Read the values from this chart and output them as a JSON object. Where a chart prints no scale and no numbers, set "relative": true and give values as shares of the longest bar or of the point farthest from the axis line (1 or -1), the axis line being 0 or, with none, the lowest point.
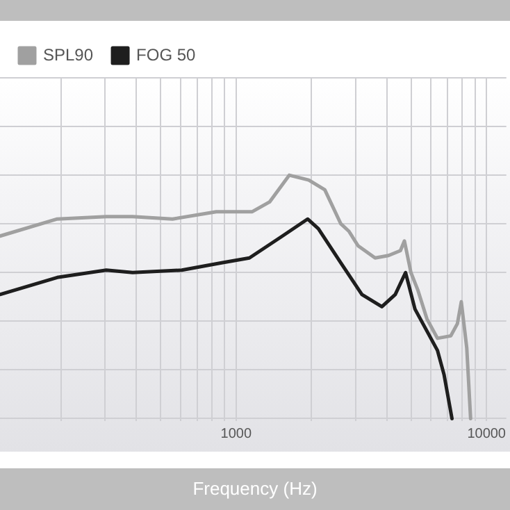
{
  "chart_data": {
    "type": "line",
    "xlabel": "Frequency (Hz)",
    "relative": true,
    "log": "x",
    "grid": true,
    "legend": "top left",
    "marker": "none",
    "line_style": "solid",
    "xlim": [
      114,
      12000
    ],
    "xticks": [
      {
        "value": 200,
        "label": null
      },
      {
        "value": 300,
        "label": null
      },
      {
        "value": 400,
        "label": null
      },
      {
        "value": 500,
        "label": null
      },
      {
        "value": 600,
        "label": null
      },
      {
        "value": 700,
        "label": null
      },
      {
        "value": 800,
        "label": null
      },
      {
        "value": 900,
        "label": null
      },
      1000,
      {
        "value": 2000,
        "label": null
      },
      {
        "value": 3000,
        "label": null
      },
      {
        "value": 4000,
        "label": null
      },
      {
        "value": 5000,
        "label": null
      },
      {
        "value": 6000,
        "label": null
      },
      {
        "value": 7000,
        "label": null
      },
      {
        "value": 8000,
        "label": null
      },
      {
        "value": 9000,
        "label": null
      },
      10000
    ],
    "series": [
      {
        "name": "SPL90",
        "color": "#a0a0a0",
        "x": [
          114,
          193,
          303,
          386,
          557,
          833,
          1160,
          1360,
          1630,
          1950,
          2260,
          2620,
          2820,
          3070,
          3590,
          4060,
          4530,
          4700,
          4990,
          5310,
          5780,
          6370,
          7200,
          7650,
          7930,
          8340,
          8640
        ],
        "values": [
          0.75,
          0.82,
          0.83,
          0.83,
          0.82,
          0.85,
          0.85,
          0.89,
          1.0,
          0.98,
          0.94,
          0.8,
          0.77,
          0.71,
          0.66,
          0.67,
          0.69,
          0.73,
          0.6,
          0.53,
          0.41,
          0.33,
          0.34,
          0.39,
          0.48,
          0.29,
          0
        ]
      },
      {
        "name": "FOG 50",
        "color": "#1e1e1e",
        "x": [
          114,
          193,
          303,
          386,
          607,
          875,
          1130,
          1530,
          1930,
          2130,
          2620,
          3180,
          3820,
          4320,
          4750,
          5180,
          5780,
          6370,
          6770,
          7280
        ],
        "values": [
          0.51,
          0.58,
          0.61,
          0.6,
          0.61,
          0.64,
          0.66,
          0.75,
          0.82,
          0.78,
          0.64,
          0.51,
          0.46,
          0.51,
          0.6,
          0.45,
          0.36,
          0.28,
          0.18,
          0
        ]
      }
    ]
  }
}
